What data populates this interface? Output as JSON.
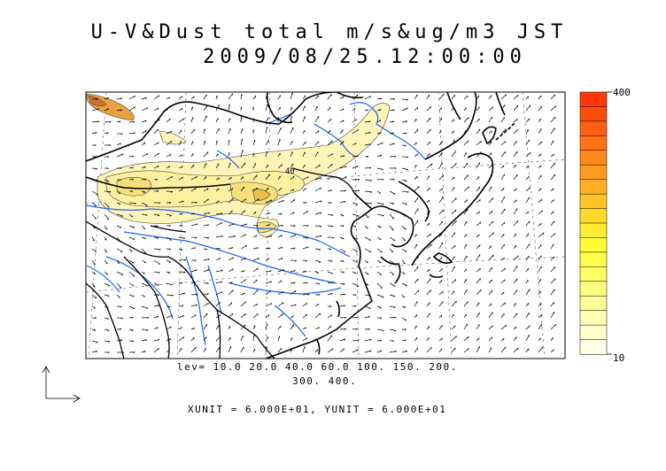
{
  "title": {
    "line1": "U-V&Dust total m/s&ug/m3 JST",
    "line2": "2009/08/25.12:00:00"
  },
  "legend": {
    "lev_line1": "lev= 10.0 20.0 40.0 60.0 100. 150. 200.",
    "lev_line2": "300. 400.",
    "units_text": "XUNIT = 6.000E+01, YUNIT = 6.000E+01",
    "contour_levels": [
      10,
      20,
      40,
      60,
      100,
      150,
      200,
      300,
      400
    ]
  },
  "colorbar": {
    "max_label": "400",
    "min_label": "10",
    "colors": [
      "#ffffe6",
      "#ffffcc",
      "#ffffb3",
      "#ffff99",
      "#ffff80",
      "#ffff66",
      "#ffff4d",
      "#ffff33",
      "#ffec2e",
      "#ffd92a",
      "#ffc426",
      "#ffb022",
      "#ff9c1e",
      "#ff881a",
      "#ff7316",
      "#ff5f12",
      "#ff4b0e",
      "#ff370a"
    ]
  },
  "colors": {
    "coastline": "#000000",
    "river": "#1f5fff",
    "dust_low": "#fff5b8",
    "dust_mid": "#f7e07a",
    "dust_high": "#e8b43a"
  },
  "map": {
    "label_40": "40"
  }
}
